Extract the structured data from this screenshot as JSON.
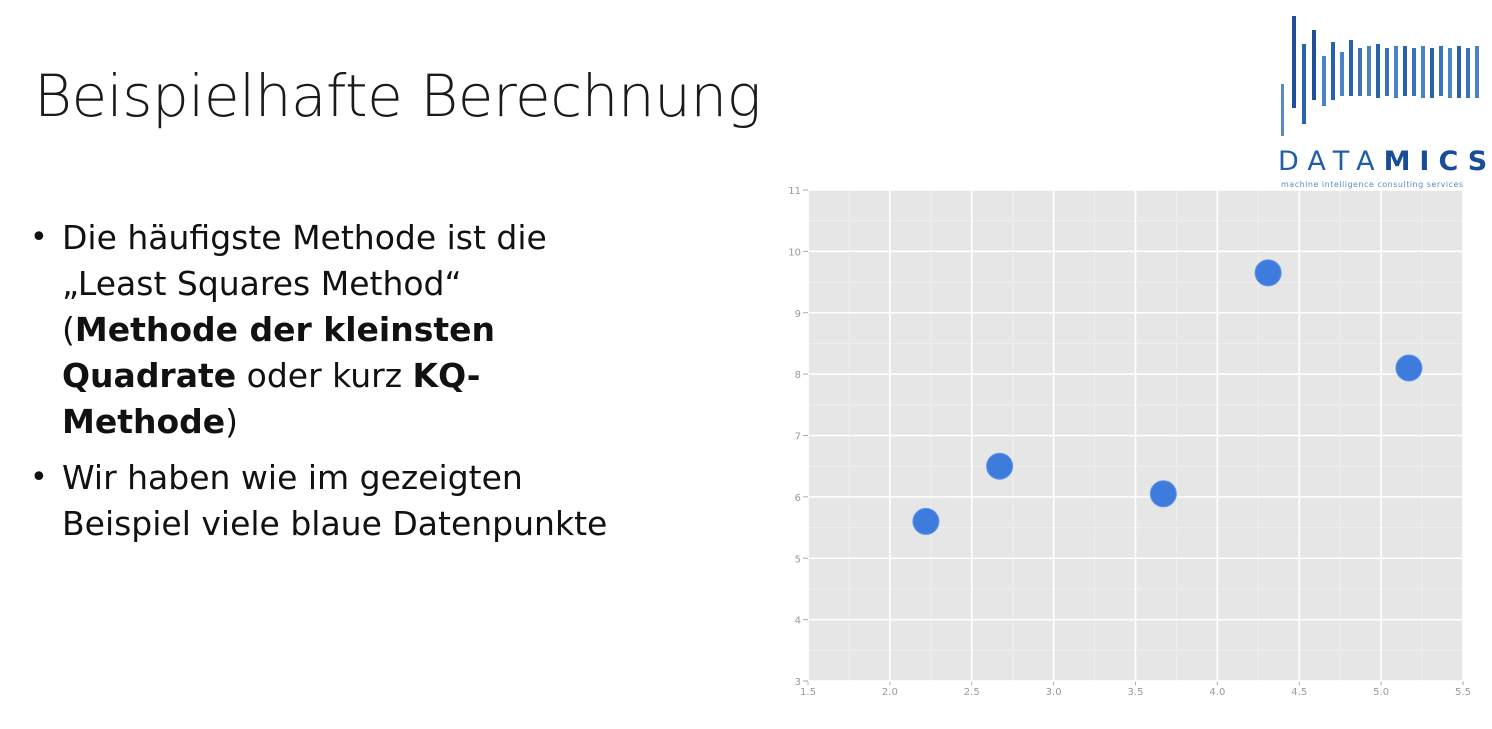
{
  "slide": {
    "title": "Beispielhafte Berechnung"
  },
  "logo": {
    "word_light": "DATA",
    "word_bold": "MICS",
    "tagline": "machine intelligence consulting services"
  },
  "bullets": {
    "b1": {
      "l1": "Die häufigste Methode ist die",
      "l2": "„Least Squares Method“",
      "l3_open": "(",
      "l3_bold": "Methode der kleinsten",
      "l4_bold": "Quadrate",
      "l4_mid": " oder kurz ",
      "l4_bold2": "KQ-",
      "l5_bold": "Methode",
      "l5_close": ")"
    },
    "b2": {
      "l1": "Wir haben wie im gezeigten",
      "l2": "Beispiel viele blaue Datenpunkte"
    }
  },
  "colors": {
    "point": "#3d7bdc",
    "plot_bg": "#e6e6e6",
    "logo_blue": "#1f5fa8"
  },
  "chart_data": {
    "type": "scatter",
    "title": "",
    "xlabel": "",
    "ylabel": "",
    "xlim": [
      1.5,
      5.5
    ],
    "ylim": [
      3,
      11
    ],
    "xticks": [
      "1.5",
      "2.0",
      "2.5",
      "3.0",
      "3.5",
      "4.0",
      "4.5",
      "5.0",
      "5.5"
    ],
    "yticks": [
      "3",
      "4",
      "5",
      "6",
      "7",
      "8",
      "9",
      "10",
      "11"
    ],
    "grid": true,
    "series": [
      {
        "x": [
          2.22,
          2.67,
          3.67,
          4.31,
          5.17
        ],
        "y": [
          5.6,
          6.5,
          6.05,
          9.65,
          8.1
        ]
      }
    ]
  }
}
